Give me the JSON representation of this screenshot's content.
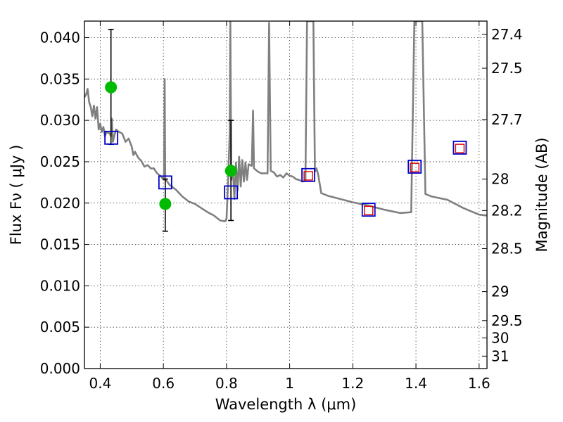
{
  "chart_data": {
    "type": "scatter",
    "xlabel": "Wavelength  λ (μm)",
    "ylabel": "Flux  Fν  ( μJy )",
    "ylabel_right": "Magnitude (AB)",
    "xlim": [
      0.35,
      1.625
    ],
    "ylim": [
      0.0,
      0.042
    ],
    "grid": true,
    "x_ticks": [
      0.4,
      0.6,
      0.8,
      1.0,
      1.2,
      1.4,
      1.6
    ],
    "x_tick_labels": [
      "0.4",
      "0.6",
      "0.8",
      "1",
      "1.2",
      "1.4",
      "1.6"
    ],
    "y_ticks": [
      0.0,
      0.005,
      0.01,
      0.015,
      0.02,
      0.025,
      0.03,
      0.035,
      0.04
    ],
    "y_tick_labels": [
      "0.000",
      "0.005",
      "0.010",
      "0.015",
      "0.020",
      "0.025",
      "0.030",
      "0.035",
      "0.040"
    ],
    "right_ticks": [
      {
        "label": "27.4",
        "flux": 0.0404
      },
      {
        "label": "27.5",
        "flux": 0.0363
      },
      {
        "label": "27.7",
        "flux": 0.0301
      },
      {
        "label": "28",
        "flux": 0.0229
      },
      {
        "label": "28.2",
        "flux": 0.0191
      },
      {
        "label": "28.5",
        "flux": 0.0145
      },
      {
        "label": "29",
        "flux": 0.0093
      },
      {
        "label": "29.5",
        "flux": 0.0058
      },
      {
        "label": "30",
        "flux": 0.0037
      },
      {
        "label": "31",
        "flux": 0.0015
      }
    ],
    "series": [
      {
        "kind": "model_spectrum",
        "color": "#808080",
        "points": [
          [
            0.35,
            0.0328
          ],
          [
            0.355,
            0.0331
          ],
          [
            0.36,
            0.0338
          ],
          [
            0.365,
            0.0322
          ],
          [
            0.37,
            0.0316
          ],
          [
            0.375,
            0.0305
          ],
          [
            0.38,
            0.0318
          ],
          [
            0.385,
            0.0302
          ],
          [
            0.39,
            0.0316
          ],
          [
            0.395,
            0.0289
          ],
          [
            0.4,
            0.0296
          ],
          [
            0.405,
            0.0286
          ],
          [
            0.41,
            0.0292
          ],
          [
            0.415,
            0.0281
          ],
          [
            0.42,
            0.0286
          ],
          [
            0.43,
            0.0284
          ],
          [
            0.434,
            0.0281
          ],
          [
            0.437,
            0.0302
          ],
          [
            0.44,
            0.0274
          ],
          [
            0.445,
            0.0282
          ],
          [
            0.45,
            0.0289
          ],
          [
            0.46,
            0.0286
          ],
          [
            0.47,
            0.0284
          ],
          [
            0.48,
            0.0274
          ],
          [
            0.49,
            0.0278
          ],
          [
            0.5,
            0.0268
          ],
          [
            0.505,
            0.0258
          ],
          [
            0.51,
            0.0262
          ],
          [
            0.52,
            0.0255
          ],
          [
            0.53,
            0.0251
          ],
          [
            0.54,
            0.0244
          ],
          [
            0.55,
            0.0246
          ],
          [
            0.56,
            0.0242
          ],
          [
            0.57,
            0.0242
          ],
          [
            0.58,
            0.0236
          ],
          [
            0.59,
            0.0233
          ],
          [
            0.6,
            0.0229
          ],
          [
            0.602,
            0.0228
          ],
          [
            0.604,
            0.035
          ],
          [
            0.606,
            0.0229
          ],
          [
            0.61,
            0.0227
          ],
          [
            0.62,
            0.0222
          ],
          [
            0.64,
            0.0216
          ],
          [
            0.66,
            0.0208
          ],
          [
            0.68,
            0.0202
          ],
          [
            0.7,
            0.0199
          ],
          [
            0.72,
            0.0194
          ],
          [
            0.74,
            0.0189
          ],
          [
            0.76,
            0.0185
          ],
          [
            0.78,
            0.0179
          ],
          [
            0.795,
            0.0178
          ],
          [
            0.8,
            0.0181
          ],
          [
            0.805,
            0.0225
          ],
          [
            0.81,
            0.0285
          ],
          [
            0.812,
            0.042
          ],
          [
            0.815,
            0.0228
          ],
          [
            0.82,
            0.0241
          ],
          [
            0.825,
            0.0205
          ],
          [
            0.83,
            0.0249
          ],
          [
            0.835,
            0.0215
          ],
          [
            0.84,
            0.0256
          ],
          [
            0.845,
            0.022
          ],
          [
            0.85,
            0.0252
          ],
          [
            0.855,
            0.0226
          ],
          [
            0.86,
            0.0249
          ],
          [
            0.865,
            0.0228
          ],
          [
            0.87,
            0.0247
          ],
          [
            0.88,
            0.0245
          ],
          [
            0.884,
            0.0312
          ],
          [
            0.887,
            0.0242
          ],
          [
            0.9,
            0.0238
          ],
          [
            0.91,
            0.0236
          ],
          [
            0.93,
            0.0236
          ],
          [
            0.935,
            0.0418
          ],
          [
            0.94,
            0.0239
          ],
          [
            0.95,
            0.0237
          ],
          [
            0.96,
            0.0232
          ],
          [
            0.97,
            0.0234
          ],
          [
            0.98,
            0.0231
          ],
          [
            0.99,
            0.0236
          ],
          [
            1.0,
            0.0233
          ],
          [
            1.01,
            0.0232
          ],
          [
            1.02,
            0.0229
          ],
          [
            1.03,
            0.0228
          ],
          [
            1.04,
            0.0226
          ],
          [
            1.05,
            0.0227
          ],
          [
            1.055,
            0.042
          ],
          [
            1.065,
            0.042
          ],
          [
            1.075,
            0.042
          ],
          [
            1.08,
            0.0238
          ],
          [
            1.085,
            0.0242
          ],
          [
            1.09,
            0.0235
          ],
          [
            1.1,
            0.0212
          ],
          [
            1.12,
            0.0209
          ],
          [
            1.15,
            0.0206
          ],
          [
            1.2,
            0.0201
          ],
          [
            1.25,
            0.0197
          ],
          [
            1.3,
            0.0192
          ],
          [
            1.35,
            0.0188
          ],
          [
            1.385,
            0.0189
          ],
          [
            1.395,
            0.042
          ],
          [
            1.42,
            0.042
          ],
          [
            1.43,
            0.0211
          ],
          [
            1.45,
            0.0208
          ],
          [
            1.5,
            0.0204
          ],
          [
            1.55,
            0.0194
          ],
          [
            1.6,
            0.0186
          ],
          [
            1.625,
            0.0185
          ]
        ]
      },
      {
        "kind": "observed",
        "color": "#00bb00",
        "marker": "circle",
        "points": [
          {
            "x": 0.434,
            "y": 0.034,
            "err_low": 0.0271,
            "err_high": 0.041
          },
          {
            "x": 0.606,
            "y": 0.0199,
            "err_low": 0.0166,
            "err_high": 0.0229
          },
          {
            "x": 0.814,
            "y": 0.0239,
            "err_low": 0.0179,
            "err_high": 0.03
          }
        ]
      },
      {
        "kind": "model_band",
        "color": "#0000cc",
        "marker": "square",
        "points": [
          {
            "x": 0.435,
            "y": 0.0279
          },
          {
            "x": 0.606,
            "y": 0.0225
          },
          {
            "x": 0.814,
            "y": 0.0213
          },
          {
            "x": 1.059,
            "y": 0.0234
          },
          {
            "x": 1.25,
            "y": 0.0192
          },
          {
            "x": 1.396,
            "y": 0.0244
          },
          {
            "x": 1.539,
            "y": 0.0267
          }
        ]
      },
      {
        "kind": "model_band_inner",
        "color": "#dd0000",
        "marker": "square",
        "points": [
          {
            "x": 1.059,
            "y": 0.0233
          },
          {
            "x": 1.25,
            "y": 0.0191
          },
          {
            "x": 1.396,
            "y": 0.0243
          },
          {
            "x": 1.539,
            "y": 0.0266
          }
        ]
      }
    ]
  }
}
